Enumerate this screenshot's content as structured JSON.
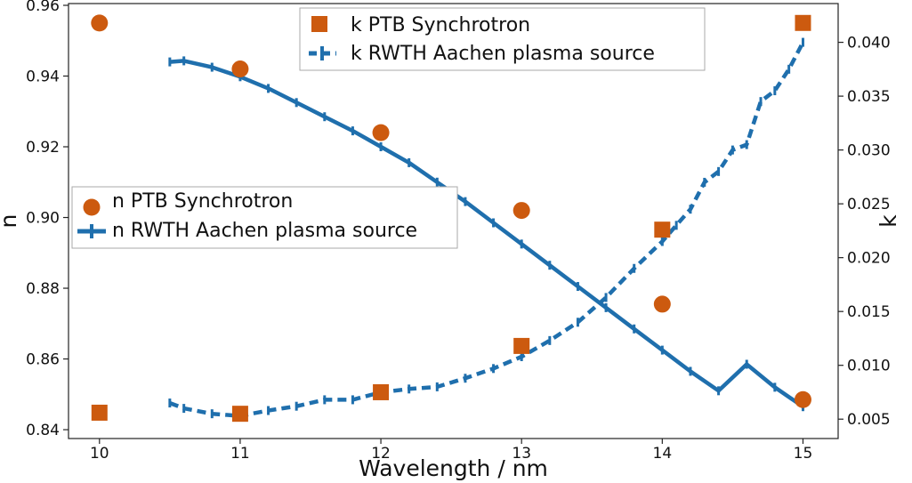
{
  "chart_data": {
    "type": "line",
    "xlabel": "Wavelength / nm",
    "ylabel_left": "n",
    "ylabel_right": "k",
    "xlim": [
      9.78,
      15.25
    ],
    "ylim_left": [
      0.8375,
      0.9605
    ],
    "ylim_right": [
      0.0032,
      0.0436
    ],
    "xticks": [
      10,
      11,
      12,
      13,
      14,
      15
    ],
    "yticks_left": [
      0.84,
      0.86,
      0.88,
      0.9,
      0.92,
      0.94,
      0.96
    ],
    "yticks_left_labels": [
      "0.84",
      "0.86",
      "0.88",
      "0.90",
      "0.92",
      "0.94",
      "0.96"
    ],
    "yticks_right": [
      0.005,
      0.01,
      0.015,
      0.02,
      0.025,
      0.03,
      0.035,
      0.04
    ],
    "yticks_right_labels": [
      "0.005",
      "0.010",
      "0.015",
      "0.020",
      "0.025",
      "0.030",
      "0.035",
      "0.040"
    ],
    "legend_k": {
      "placement": "top-center",
      "entries": [
        "k PTB Synchrotron",
        "k RWTH Aachen plasma source"
      ]
    },
    "legend_n": {
      "placement": "center-left",
      "entries": [
        "n PTB Synchrotron",
        "n RWTH Aachen plasma source"
      ]
    },
    "series": [
      {
        "name": "n PTB Synchrotron",
        "axis": "left",
        "marker": "circle",
        "color": "#cc5a0f",
        "x": [
          10,
          11,
          12,
          13,
          14,
          15
        ],
        "y": [
          0.955,
          0.942,
          0.924,
          0.902,
          0.8755,
          0.8485
        ]
      },
      {
        "name": "n RWTH Aachen plasma source",
        "axis": "left",
        "style": "solid",
        "color": "#1f6fad",
        "x": [
          10.5,
          10.6,
          10.8,
          11.0,
          11.2,
          11.4,
          11.6,
          11.8,
          12.0,
          12.2,
          12.4,
          12.6,
          12.8,
          13.0,
          13.2,
          13.4,
          13.6,
          13.8,
          14.0,
          14.2,
          14.4,
          14.6,
          14.8,
          15.0
        ],
        "y": [
          0.944,
          0.9443,
          0.9425,
          0.9398,
          0.9365,
          0.9325,
          0.9285,
          0.9245,
          0.92,
          0.9155,
          0.91,
          0.9045,
          0.8985,
          0.8925,
          0.8865,
          0.8805,
          0.8745,
          0.8685,
          0.8625,
          0.8565,
          0.851,
          0.8585,
          0.852,
          0.8465
        ]
      },
      {
        "name": "k PTB Synchrotron",
        "axis": "right",
        "marker": "square",
        "color": "#cc5a0f",
        "x": [
          10,
          11,
          12,
          13,
          14,
          15
        ],
        "y": [
          0.0056,
          0.0055,
          0.0075,
          0.0118,
          0.0226,
          0.0418
        ]
      },
      {
        "name": "k RWTH Aachen plasma source",
        "axis": "right",
        "style": "dashed",
        "color": "#1f6fad",
        "x": [
          10.5,
          10.6,
          10.8,
          11.0,
          11.2,
          11.4,
          11.6,
          11.8,
          12.0,
          12.2,
          12.4,
          12.6,
          12.8,
          13.0,
          13.2,
          13.4,
          13.6,
          13.8,
          14.0,
          14.1,
          14.2,
          14.3,
          14.4,
          14.5,
          14.6,
          14.7,
          14.8,
          14.9,
          15.0
        ],
        "y": [
          0.0065,
          0.006,
          0.0055,
          0.0053,
          0.0058,
          0.0062,
          0.0068,
          0.0068,
          0.0075,
          0.0078,
          0.008,
          0.0088,
          0.0097,
          0.0108,
          0.0123,
          0.014,
          0.0163,
          0.019,
          0.0215,
          0.023,
          0.0245,
          0.027,
          0.028,
          0.03,
          0.0305,
          0.0345,
          0.0355,
          0.0375,
          0.04
        ]
      }
    ]
  }
}
